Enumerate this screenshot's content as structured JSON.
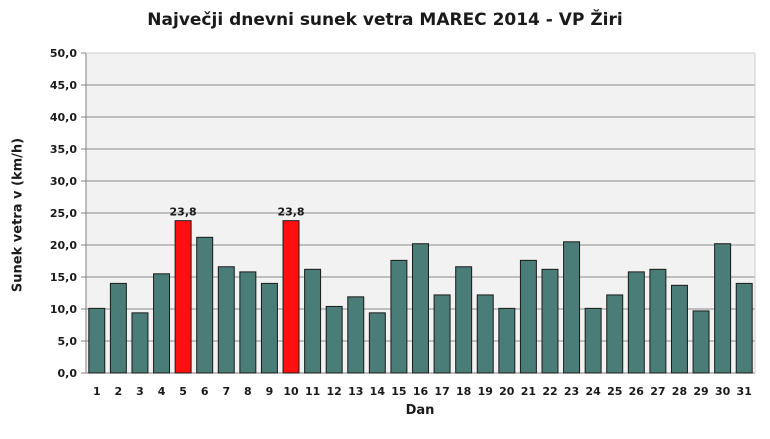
{
  "chart_data": {
    "type": "bar",
    "title": "Največji dnevni sunek vetra MAREC 2014 - VP Žiri",
    "xlabel": "Dan",
    "ylabel": "Sunek vetra v (km/h)",
    "ylim": [
      0,
      50
    ],
    "ytick_step": 5,
    "ytick_labels": [
      "0,0",
      "5,0",
      "10,0",
      "15,0",
      "20,0",
      "25,0",
      "30,0",
      "35,0",
      "40,0",
      "45,0",
      "50,0"
    ],
    "grid": true,
    "legend": "none",
    "categories": [
      "1",
      "2",
      "3",
      "4",
      "5",
      "6",
      "7",
      "8",
      "9",
      "10",
      "11",
      "12",
      "13",
      "14",
      "15",
      "16",
      "17",
      "18",
      "19",
      "20",
      "21",
      "22",
      "23",
      "24",
      "25",
      "26",
      "27",
      "28",
      "29",
      "30",
      "31"
    ],
    "values": [
      10.1,
      14.0,
      9.4,
      15.5,
      23.8,
      21.2,
      16.6,
      15.8,
      14.0,
      23.8,
      16.2,
      10.4,
      11.9,
      9.4,
      17.6,
      20.2,
      12.2,
      16.6,
      12.2,
      10.1,
      17.6,
      16.2,
      20.5,
      10.1,
      12.2,
      15.8,
      16.2,
      13.7,
      9.7,
      20.2,
      14.0
    ],
    "highlight_indices": [
      4,
      9
    ],
    "data_labels": [
      {
        "index": 4,
        "text": "23,8"
      },
      {
        "index": 9,
        "text": "23,8"
      }
    ],
    "colors": {
      "bar": "#4a7c78",
      "bar_highlight": "#ff1010",
      "plot_background": "#f2f2f2",
      "grid": "#8c8c8c"
    }
  }
}
